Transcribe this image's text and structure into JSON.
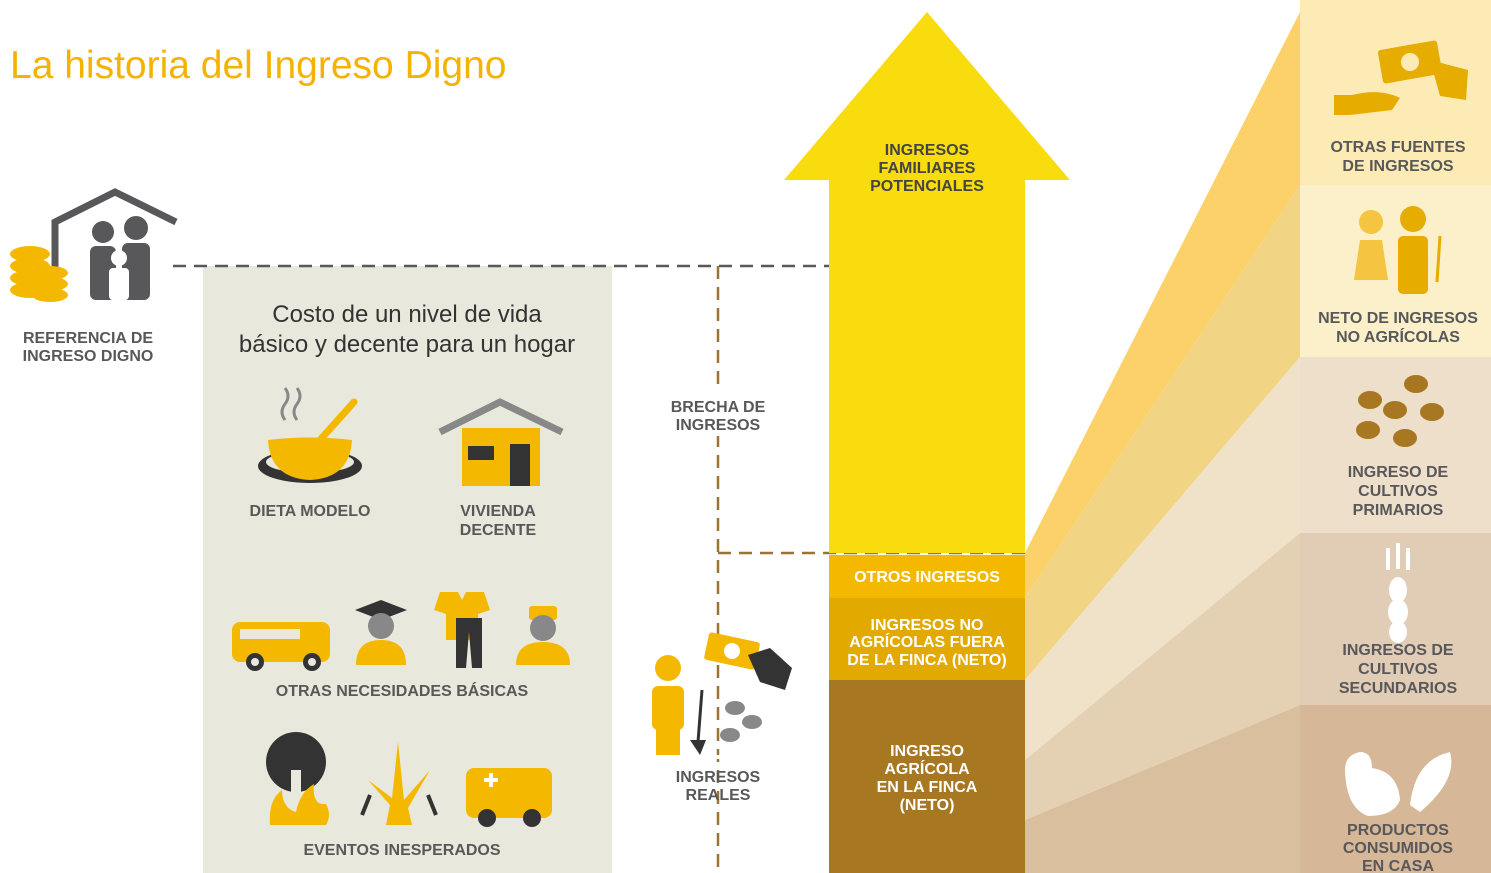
{
  "header": {
    "title": "La historia del Ingreso Digno"
  },
  "reference": {
    "lines": [
      "REFERENCIA DE",
      "INGRESO DIGNO"
    ]
  },
  "cost_box": {
    "heading": [
      "Costo de un nivel de vida",
      "básico y decente para un hogar"
    ],
    "items": [
      {
        "lines": [
          "DIETA MODELO"
        ]
      },
      {
        "lines": [
          "VIVIENDA",
          "DECENTE"
        ]
      },
      {
        "lines": [
          "OTRAS NECESIDADES BÁSICAS"
        ]
      },
      {
        "lines": [
          "EVENTOS INESPERADOS"
        ]
      }
    ]
  },
  "gap": {
    "lines": [
      "BRECHA DE",
      "INGRESOS"
    ]
  },
  "actual": {
    "lines": [
      "INGRESOS",
      "REALES"
    ]
  },
  "arrow": {
    "lines": [
      "INGRESOS",
      "FAMILIARES",
      "POTENCIALES"
    ]
  },
  "stack": [
    {
      "lines": [
        "OTROS INGRESOS"
      ]
    },
    {
      "lines": [
        "INGRESOS NO",
        "AGRÍCOLAS FUERA",
        "DE LA FINCA (NETO)"
      ]
    },
    {
      "lines": [
        "INGRESO",
        "AGRÍCOLA",
        "EN LA FINCA",
        "(NETO)"
      ]
    }
  ],
  "sources": [
    {
      "lines": [
        "OTRAS FUENTES",
        "DE INGRESOS"
      ]
    },
    {
      "lines": [
        "NETO DE INGRESOS",
        "NO AGRÍCOLAS"
      ]
    },
    {
      "lines": [
        "INGRESO DE",
        "CULTIVOS",
        "PRIMARIOS"
      ]
    },
    {
      "lines": [
        "INGRESOS DE",
        "CULTIVOS",
        "SECUNDARIOS"
      ]
    },
    {
      "lines": [
        "PRODUCTOS",
        "CONSUMIDOS",
        "EN CASA"
      ]
    }
  ]
}
